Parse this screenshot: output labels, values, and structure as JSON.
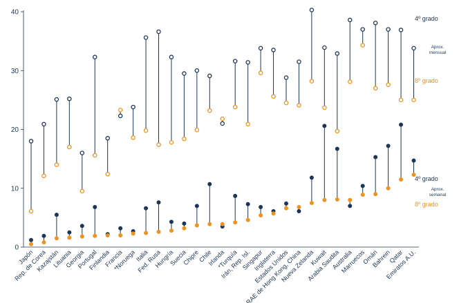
{
  "chart_data": {
    "type": "scatter",
    "ylim": [
      0,
      40
    ],
    "yticks": [
      0,
      10,
      20,
      30,
      40
    ],
    "grid": false,
    "categories": [
      "Japón",
      "Rep. de Corea",
      "Kazajstán",
      "Lituania",
      "Georgia",
      "Portugal",
      "Finlandia",
      "Francia",
      "*Noruega",
      "Italia",
      "Fed. Rusa",
      "Hungría",
      "Suecia",
      "Chipre",
      "Chile",
      "Irlanda",
      "*Turquía",
      "Irán, Rep. Isl.",
      "Singapur",
      "Inglaterra",
      "Estados Unidos",
      "RAE de Hong Kong, China",
      "Nueva Zelanda",
      "Kuwait",
      "Arabia Saudita",
      "Australia",
      "Marruecos",
      "Omán",
      "Bahrein",
      "Qatar",
      "Emiratos A.U."
    ],
    "series": [
      {
        "name": "4º grado",
        "group": "Aprox. mensual",
        "color": "#1d3557",
        "filled": false,
        "values": [
          18.0,
          20.9,
          25.1,
          25.2,
          16.0,
          32.3,
          18.5,
          22.3,
          23.8,
          35.6,
          36.6,
          32.3,
          29.5,
          30.0,
          29.1,
          21.0,
          31.6,
          31.4,
          33.8,
          33.5,
          28.8,
          31.5,
          40.3,
          33.9,
          32.9,
          38.6,
          37.0,
          38.1,
          37.0,
          36.9,
          33.8
        ]
      },
      {
        "name": "8º grado",
        "group": "Aprox. mensual",
        "color": "#f0921e",
        "filled": false,
        "values": [
          6.1,
          12.1,
          14.0,
          17.0,
          9.5,
          15.6,
          12.4,
          23.3,
          18.6,
          19.8,
          17.4,
          17.8,
          18.4,
          19.9,
          23.2,
          21.8,
          23.8,
          20.9,
          29.6,
          25.6,
          24.5,
          24.1,
          28.2,
          23.7,
          19.7,
          28.1,
          34.3,
          27.0,
          27.6,
          25.0,
          25.0
        ]
      },
      {
        "name": "4º grado",
        "group": "Aprox. semanal",
        "color": "#1d3557",
        "filled": true,
        "values": [
          1.2,
          1.9,
          5.5,
          2.5,
          3.6,
          6.8,
          2.2,
          3.2,
          2.7,
          6.6,
          7.6,
          4.3,
          4.0,
          7.0,
          10.7,
          3.5,
          8.7,
          7.3,
          6.8,
          6.1,
          7.4,
          6.1,
          11.8,
          20.6,
          16.7,
          7.0,
          10.4,
          15.3,
          17.2,
          20.8,
          14.7
        ]
      },
      {
        "name": "8º grado",
        "group": "Aprox. semanal",
        "color": "#f0921e",
        "filled": true,
        "values": [
          0.5,
          0.8,
          1.5,
          1.6,
          1.8,
          1.9,
          2.0,
          2.0,
          2.3,
          2.4,
          2.6,
          2.8,
          3.2,
          3.7,
          3.9,
          3.9,
          4.2,
          4.6,
          5.4,
          5.7,
          6.6,
          6.8,
          7.5,
          8.0,
          8.1,
          8.0,
          8.9,
          9.0,
          10.0,
          11.5,
          12.3
        ]
      }
    ],
    "legend": {
      "monthly": {
        "grade4": "4º grado",
        "note": "Aprox. mensual",
        "grade8": "8º grado"
      },
      "weekly": {
        "grade4": "4º grado",
        "note": "Aprox. semanal",
        "grade8": "8º grado"
      }
    },
    "legend_placement": "right"
  }
}
